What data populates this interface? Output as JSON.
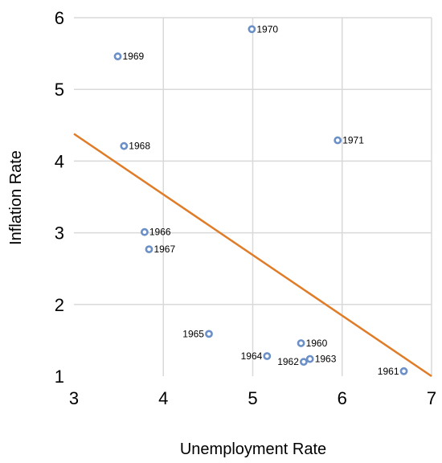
{
  "chart_data": {
    "type": "scatter",
    "title": "",
    "xlabel": "Unemployment Rate",
    "ylabel": "Inflation Rate",
    "xlim": [
      3,
      7
    ],
    "ylim": [
      1,
      6
    ],
    "x_ticks": [
      3,
      4,
      5,
      6,
      7
    ],
    "y_ticks": [
      1,
      2,
      3,
      4,
      5,
      6
    ],
    "grid": "vertical and horizontal",
    "colors": {
      "points": "#6b8fc7",
      "trendline": "#e07c28",
      "grid": "#d9d9d9"
    },
    "points": [
      {
        "label": "1960",
        "x": 5.54,
        "y": 1.46
      },
      {
        "label": "1961",
        "x": 6.69,
        "y": 1.07
      },
      {
        "label": "1962",
        "x": 5.57,
        "y": 1.2
      },
      {
        "label": "1963",
        "x": 5.64,
        "y": 1.24
      },
      {
        "label": "1964",
        "x": 5.16,
        "y": 1.28
      },
      {
        "label": "1965",
        "x": 4.51,
        "y": 1.59
      },
      {
        "label": "1966",
        "x": 3.79,
        "y": 3.01
      },
      {
        "label": "1967",
        "x": 3.84,
        "y": 2.77
      },
      {
        "label": "1968",
        "x": 3.56,
        "y": 4.21
      },
      {
        "label": "1969",
        "x": 3.49,
        "y": 5.46
      },
      {
        "label": "1970",
        "x": 4.99,
        "y": 5.84
      },
      {
        "label": "1971",
        "x": 5.95,
        "y": 4.29
      }
    ],
    "trendline": {
      "type": "linear",
      "from": [
        3.0,
        4.38
      ],
      "to": [
        7.0,
        1.0
      ]
    }
  }
}
